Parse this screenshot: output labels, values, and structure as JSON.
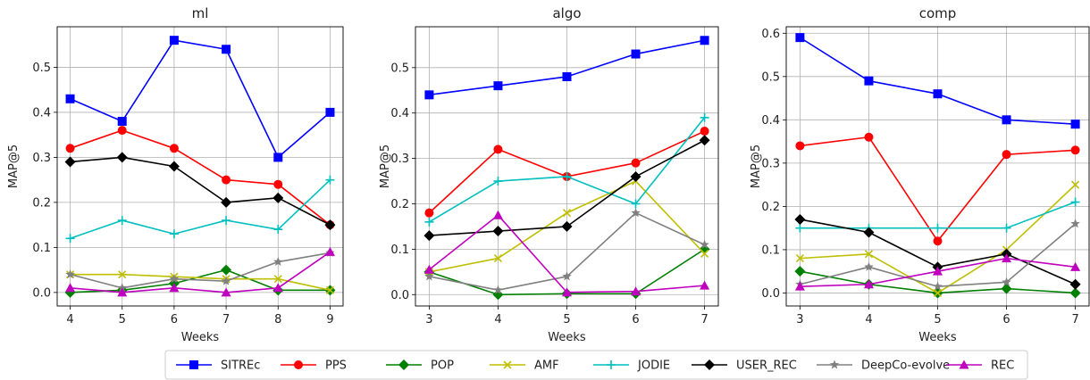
{
  "legend": [
    {
      "name": "SITREc",
      "color": "#0000ff",
      "marker": "square"
    },
    {
      "name": "PPS",
      "color": "#ff0000",
      "marker": "circle"
    },
    {
      "name": "POP",
      "color": "#008000",
      "marker": "diamond"
    },
    {
      "name": "AMF",
      "color": "#bfbf00",
      "marker": "x"
    },
    {
      "name": "JODIE",
      "color": "#00bfbf",
      "marker": "plus"
    },
    {
      "name": "USER_REC",
      "color": "#000000",
      "marker": "diamond"
    },
    {
      "name": "DeepCo-evolve",
      "color": "#808080",
      "marker": "star"
    },
    {
      "name": "REC",
      "color": "#bf00bf",
      "marker": "triangle"
    }
  ],
  "chart_data": [
    {
      "type": "line",
      "title": "ml",
      "xlabel": "Weeks",
      "ylabel": "MAP@5",
      "x": [
        4,
        5,
        6,
        7,
        8,
        9
      ],
      "xticks": [
        "4",
        "5",
        "6",
        "7",
        "8",
        "9"
      ],
      "xlim": [
        3.75,
        9.25
      ],
      "ylim": [
        -0.03,
        0.59
      ],
      "yticks": [
        "0.0",
        "0.1",
        "0.2",
        "0.3",
        "0.4",
        "0.5"
      ],
      "grid": true,
      "series": [
        {
          "name": "SITREc",
          "values": [
            0.43,
            0.38,
            0.56,
            0.54,
            0.3,
            0.4
          ]
        },
        {
          "name": "PPS",
          "values": [
            0.32,
            0.36,
            0.32,
            0.25,
            0.24,
            0.15
          ]
        },
        {
          "name": "POP",
          "values": [
            0.0,
            0.005,
            0.02,
            0.05,
            0.005,
            0.005
          ]
        },
        {
          "name": "AMF",
          "values": [
            0.04,
            0.04,
            0.035,
            0.03,
            0.03,
            0.005
          ]
        },
        {
          "name": "JODIE",
          "values": [
            0.12,
            0.16,
            0.13,
            0.16,
            0.14,
            0.25
          ]
        },
        {
          "name": "USER_REC",
          "values": [
            0.29,
            0.3,
            0.28,
            0.2,
            0.21,
            0.15
          ]
        },
        {
          "name": "DeepCo-evolve",
          "values": [
            0.04,
            0.01,
            0.03,
            0.025,
            0.068,
            0.088
          ]
        },
        {
          "name": "REC",
          "values": [
            0.01,
            0.0,
            0.01,
            0.0,
            0.01,
            0.09
          ]
        }
      ]
    },
    {
      "type": "line",
      "title": "algo",
      "xlabel": "Weeks",
      "ylabel": "MAP@5",
      "x": [
        3,
        4,
        5,
        6,
        7
      ],
      "xticks": [
        "3",
        "4",
        "5",
        "6",
        "7"
      ],
      "xlim": [
        2.8,
        7.2
      ],
      "ylim": [
        -0.025,
        0.59
      ],
      "yticks": [
        "0.0",
        "0.1",
        "0.2",
        "0.3",
        "0.4",
        "0.5"
      ],
      "grid": true,
      "series": [
        {
          "name": "SITREc",
          "values": [
            0.44,
            0.46,
            0.48,
            0.53,
            0.56
          ]
        },
        {
          "name": "PPS",
          "values": [
            0.18,
            0.32,
            0.26,
            0.29,
            0.36
          ]
        },
        {
          "name": "POP",
          "values": [
            0.05,
            0.0,
            0.002,
            0.002,
            0.1
          ]
        },
        {
          "name": "AMF",
          "values": [
            0.05,
            0.08,
            0.18,
            0.25,
            0.09
          ]
        },
        {
          "name": "JODIE",
          "values": [
            0.16,
            0.25,
            0.26,
            0.2,
            0.39
          ]
        },
        {
          "name": "USER_REC",
          "values": [
            0.13,
            0.14,
            0.15,
            0.26,
            0.34
          ]
        },
        {
          "name": "DeepCo-evolve",
          "values": [
            0.04,
            0.01,
            0.04,
            0.18,
            0.11
          ]
        },
        {
          "name": "REC",
          "values": [
            0.055,
            0.175,
            0.005,
            0.007,
            0.02
          ]
        }
      ]
    },
    {
      "type": "line",
      "title": "comp",
      "xlabel": "Weeks",
      "ylabel": "MAP@5",
      "x": [
        3,
        4,
        5,
        6,
        7
      ],
      "xticks": [
        "3",
        "4",
        "5",
        "6",
        "7"
      ],
      "xlim": [
        2.8,
        7.2
      ],
      "ylim": [
        -0.03,
        0.615
      ],
      "yticks": [
        "0.0",
        "0.1",
        "0.2",
        "0.3",
        "0.4",
        "0.5",
        "0.6"
      ],
      "grid": true,
      "series": [
        {
          "name": "SITREc",
          "values": [
            0.59,
            0.49,
            0.46,
            0.4,
            0.39
          ]
        },
        {
          "name": "PPS",
          "values": [
            0.34,
            0.36,
            0.12,
            0.32,
            0.33
          ]
        },
        {
          "name": "POP",
          "values": [
            0.05,
            0.02,
            0.0,
            0.01,
            0.0
          ]
        },
        {
          "name": "AMF",
          "values": [
            0.08,
            0.09,
            0.0,
            0.1,
            0.25
          ]
        },
        {
          "name": "JODIE",
          "values": [
            0.15,
            0.15,
            0.15,
            0.15,
            0.21
          ]
        },
        {
          "name": "USER_REC",
          "values": [
            0.17,
            0.14,
            0.06,
            0.09,
            0.02
          ]
        },
        {
          "name": "DeepCo-evolve",
          "values": [
            0.02,
            0.06,
            0.015,
            0.025,
            0.16
          ]
        },
        {
          "name": "REC",
          "values": [
            0.015,
            0.02,
            0.05,
            0.08,
            0.06
          ]
        }
      ]
    }
  ]
}
